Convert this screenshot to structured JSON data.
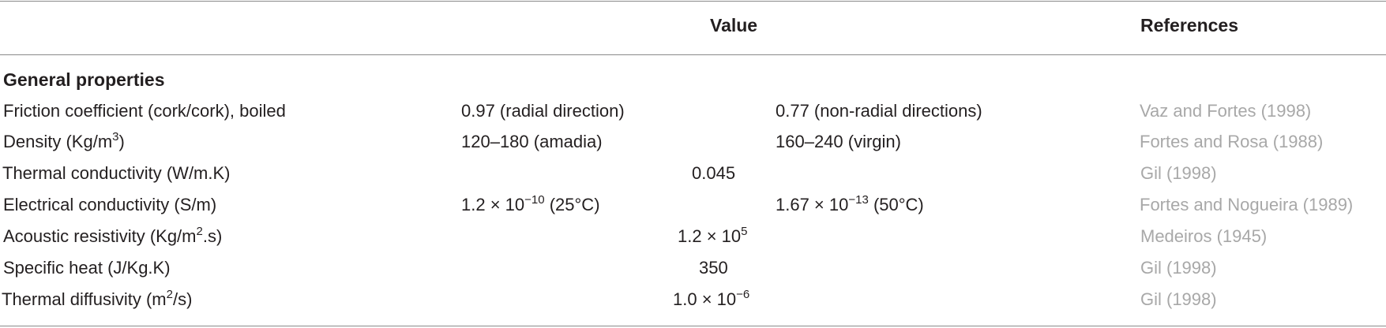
{
  "header": {
    "col_value": "Value",
    "col_references": "References"
  },
  "section_title": "General properties",
  "rows": [
    {
      "property": "Friction coefficient (cork/cork), boiled",
      "value_a": "0.97 (radial direction)",
      "value_b": "0.77 (non-radial directions)",
      "reference": "Vaz and Fortes (1998)"
    },
    {
      "property_pre": "Density (Kg/m",
      "property_sup": "3",
      "property_post": ")",
      "value_a": "120–180 (amadia)",
      "value_b": "160–240 (virgin)",
      "reference": "Fortes and Rosa (1988)"
    },
    {
      "property": "Thermal conductivity (W/m.K)",
      "value": "0.045",
      "reference": "Gil (1998)"
    },
    {
      "property": "Electrical conductivity (S/m)",
      "value_a_pre": "1.2 × 10",
      "value_a_sup": "−10",
      "value_a_post": " (25°C)",
      "value_b_pre": "1.67 × 10",
      "value_b_sup": "−13",
      "value_b_post": " (50°C)",
      "reference": "Fortes and Nogueira (1989)"
    },
    {
      "property_pre": "Acoustic resistivity (Kg/m",
      "property_sup": "2",
      "property_post": ".s)",
      "value_pre": "1.2 × 10",
      "value_sup": "5",
      "reference": "Medeiros (1945)"
    },
    {
      "property": "Specific heat (J/Kg.K)",
      "value": "350",
      "reference": "Gil (1998)"
    },
    {
      "property_pre": "Thermal diffusivity (m",
      "property_sup": "2",
      "property_post": "/s)",
      "value_pre": "1.0 × 10",
      "value_sup": "−6",
      "reference": "Gil (1998)"
    }
  ]
}
